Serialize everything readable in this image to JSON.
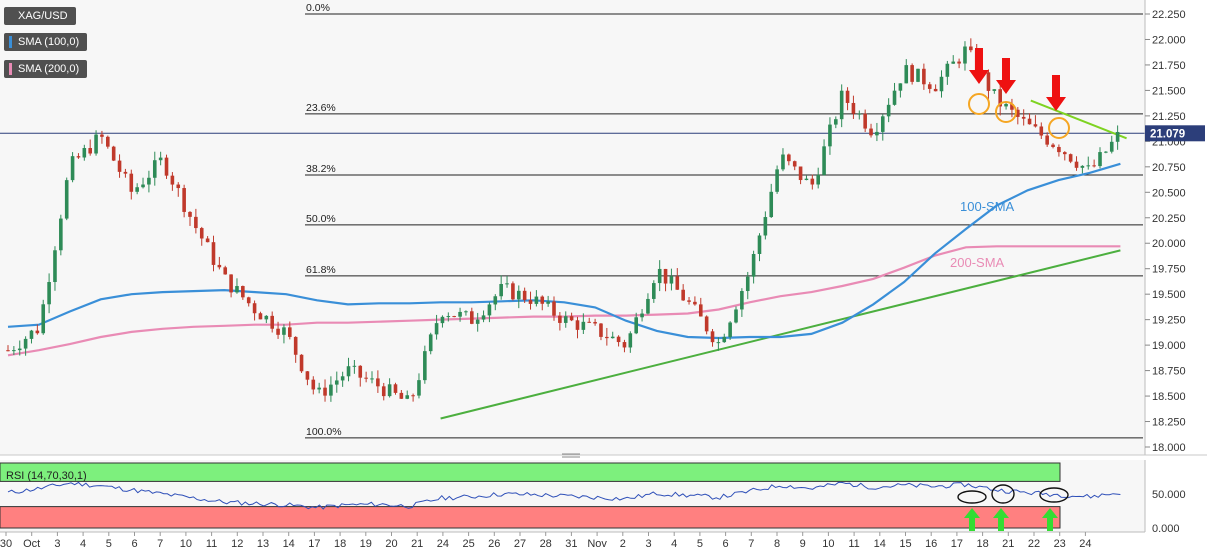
{
  "chart_data": {
    "type": "candlestick",
    "symbol": "XAG/USD",
    "indicators": [
      "SMA (100,0)",
      "SMA (200,0)"
    ],
    "last_price": "21.079",
    "price_axis": {
      "range": [
        18.0,
        22.25
      ],
      "ticks": [
        "18.000",
        "18.250",
        "18.500",
        "18.750",
        "19.000",
        "19.250",
        "19.500",
        "19.750",
        "20.000",
        "20.250",
        "20.500",
        "20.750",
        "21.000",
        "21.250",
        "21.500",
        "21.750",
        "22.000",
        "22.250"
      ]
    },
    "x_axis": {
      "day_labels": [
        "30",
        "Oct",
        "3",
        "4",
        "5",
        "6",
        "7",
        "10",
        "11",
        "12",
        "13",
        "14",
        "17",
        "18",
        "19",
        "20",
        "21",
        "24",
        "25",
        "26",
        "27",
        "28",
        "31",
        "Nov",
        "2",
        "3",
        "4",
        "5",
        "6",
        "7",
        "8",
        "9",
        "10",
        "11",
        "14",
        "15",
        "16",
        "17",
        "18",
        "21",
        "22",
        "23",
        "24"
      ]
    },
    "fibonacci": [
      {
        "label": "0.0%",
        "price": 22.25
      },
      {
        "label": "23.6%",
        "price": 21.27
      },
      {
        "label": "38.2%",
        "price": 20.67
      },
      {
        "label": "50.0%",
        "price": 20.18
      },
      {
        "label": "61.8%",
        "price": 19.68
      },
      {
        "label": "100.0%",
        "price": 18.09
      }
    ],
    "annotations": [
      {
        "text": "100-SMA",
        "color": "#3a8fd8"
      },
      {
        "text": "200-SMA",
        "color": "#e98bb5"
      }
    ],
    "sma100": [
      [
        0,
        19.18
      ],
      [
        1,
        19.2
      ],
      [
        2,
        19.33
      ],
      [
        3,
        19.45
      ],
      [
        4,
        19.5
      ],
      [
        5,
        19.52
      ],
      [
        6,
        19.53
      ],
      [
        7,
        19.54
      ],
      [
        8,
        19.52
      ],
      [
        9,
        19.5
      ],
      [
        10,
        19.44
      ],
      [
        11,
        19.4
      ],
      [
        12,
        19.41
      ],
      [
        13,
        19.41
      ],
      [
        14,
        19.42
      ],
      [
        15,
        19.42
      ],
      [
        16,
        19.43
      ],
      [
        17,
        19.44
      ],
      [
        18,
        19.42
      ],
      [
        19,
        19.37
      ],
      [
        20,
        19.24
      ],
      [
        21,
        19.14
      ],
      [
        22,
        19.08
      ],
      [
        23,
        19.07
      ],
      [
        24,
        19.08
      ],
      [
        25,
        19.08
      ],
      [
        26,
        19.11
      ],
      [
        27,
        19.22
      ],
      [
        28,
        19.4
      ],
      [
        29,
        19.62
      ],
      [
        30,
        19.9
      ],
      [
        31,
        20.14
      ],
      [
        32,
        20.37
      ],
      [
        33,
        20.52
      ],
      [
        34,
        20.62
      ],
      [
        35,
        20.69
      ],
      [
        36,
        20.78
      ]
    ],
    "sma200": [
      [
        0,
        18.9
      ],
      [
        1,
        18.95
      ],
      [
        2,
        19.01
      ],
      [
        3,
        19.08
      ],
      [
        4,
        19.13
      ],
      [
        5,
        19.16
      ],
      [
        6,
        19.18
      ],
      [
        7,
        19.19
      ],
      [
        8,
        19.2
      ],
      [
        9,
        19.2
      ],
      [
        10,
        19.22
      ],
      [
        11,
        19.22
      ],
      [
        12,
        19.23
      ],
      [
        13,
        19.24
      ],
      [
        14,
        19.25
      ],
      [
        15,
        19.26
      ],
      [
        16,
        19.27
      ],
      [
        17,
        19.28
      ],
      [
        18,
        19.28
      ],
      [
        19,
        19.29
      ],
      [
        20,
        19.29
      ],
      [
        21,
        19.3
      ],
      [
        22,
        19.31
      ],
      [
        23,
        19.35
      ],
      [
        24,
        19.42
      ],
      [
        25,
        19.48
      ],
      [
        26,
        19.52
      ],
      [
        27,
        19.58
      ],
      [
        28,
        19.65
      ],
      [
        29,
        19.76
      ],
      [
        30,
        19.88
      ],
      [
        31,
        19.96
      ],
      [
        32,
        19.97
      ],
      [
        33,
        19.97
      ],
      [
        34,
        19.97
      ],
      [
        35,
        19.97
      ],
      [
        36,
        19.97
      ]
    ],
    "trendline_support": [
      [
        14,
        18.28
      ],
      [
        36,
        19.93
      ]
    ],
    "trendline_resistance": [
      [
        33.1,
        21.4
      ],
      [
        36.2,
        21.03
      ]
    ],
    "daily_closes": [
      [
        0,
        18.95
      ],
      [
        1,
        19.17
      ],
      [
        2,
        20.75
      ],
      [
        3,
        21.05
      ],
      [
        4,
        20.5
      ],
      [
        5,
        20.82
      ],
      [
        6,
        20.2
      ],
      [
        7,
        19.65
      ],
      [
        8,
        19.35
      ],
      [
        9,
        19.12
      ],
      [
        10,
        18.5
      ],
      [
        11,
        18.75
      ],
      [
        12,
        18.6
      ],
      [
        13,
        18.42
      ],
      [
        14,
        19.35
      ],
      [
        15,
        19.25
      ],
      [
        16,
        19.55
      ],
      [
        17,
        19.45
      ],
      [
        18,
        19.25
      ],
      [
        19,
        19.15
      ],
      [
        20,
        19.0
      ],
      [
        21,
        19.75
      ],
      [
        22,
        19.42
      ],
      [
        23,
        19.02
      ],
      [
        24,
        19.72
      ],
      [
        25,
        20.85
      ],
      [
        26,
        20.55
      ],
      [
        27,
        21.45
      ],
      [
        28,
        21.1
      ],
      [
        29,
        21.7
      ],
      [
        30,
        21.55
      ],
      [
        31,
        21.9
      ],
      [
        32,
        21.4
      ],
      [
        33,
        21.15
      ],
      [
        34,
        20.95
      ],
      [
        35,
        20.7
      ],
      [
        36,
        21.08
      ]
    ],
    "rsi": {
      "label": "RSI (14,70,30,1)",
      "overbought": 70,
      "oversold": 30,
      "ticks": [
        "0.000",
        "50.000"
      ],
      "values": [
        [
          0,
          52
        ],
        [
          1,
          58
        ],
        [
          2,
          66
        ],
        [
          3,
          62
        ],
        [
          4,
          56
        ],
        [
          5,
          50
        ],
        [
          6,
          44
        ],
        [
          7,
          38
        ],
        [
          8,
          36
        ],
        [
          9,
          34
        ],
        [
          10,
          30
        ],
        [
          11,
          34
        ],
        [
          12,
          35
        ],
        [
          13,
          32
        ],
        [
          14,
          44
        ],
        [
          15,
          46
        ],
        [
          16,
          50
        ],
        [
          17,
          49
        ],
        [
          18,
          47
        ],
        [
          19,
          45
        ],
        [
          20,
          43
        ],
        [
          21,
          51
        ],
        [
          22,
          48
        ],
        [
          23,
          45
        ],
        [
          24,
          54
        ],
        [
          25,
          63
        ],
        [
          26,
          58
        ],
        [
          27,
          66
        ],
        [
          28,
          60
        ],
        [
          29,
          63
        ],
        [
          30,
          61
        ],
        [
          31,
          64
        ],
        [
          32,
          56
        ],
        [
          33,
          52
        ],
        [
          34,
          49
        ],
        [
          35,
          46
        ],
        [
          36,
          52
        ]
      ]
    }
  }
}
